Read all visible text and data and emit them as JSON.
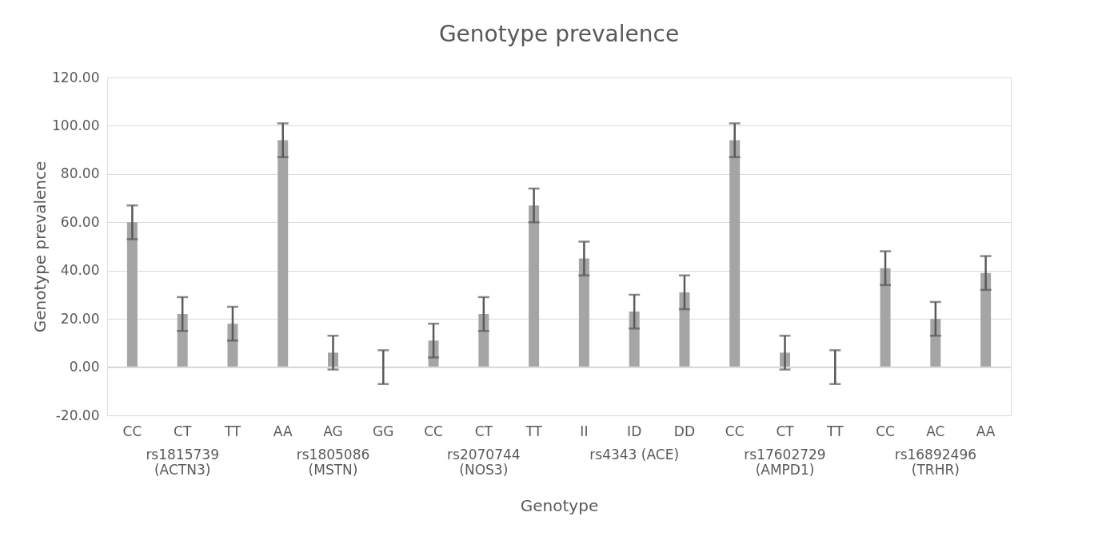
{
  "chart_data": {
    "type": "bar",
    "title": "Genotype prevalence",
    "xlabel": "Genotype",
    "ylabel": "Genotype prevalence",
    "categories": [
      "CC",
      "CT",
      "TT",
      "AA",
      "AG",
      "GG",
      "CC",
      "CT",
      "TT",
      "II",
      "ID",
      "DD",
      "CC",
      "CT",
      "TT",
      "CC",
      "AC",
      "AA"
    ],
    "values": [
      60,
      22,
      18,
      94,
      6,
      0,
      11,
      22,
      67,
      45,
      23,
      31,
      94,
      6,
      0,
      41,
      20,
      39
    ],
    "errors": [
      7,
      7,
      7,
      7,
      7,
      7,
      7,
      7,
      7,
      7,
      7,
      7,
      7,
      7,
      7,
      7,
      7,
      7
    ],
    "color": "#a5a5a5",
    "annotations": [
      "rs1815739\n(ACTN3)",
      "rs1805086\n(MSTN)",
      "rs2070744\n(NOS3)",
      "rs4343 (ACE)",
      "rs17602729\n(AMPD1)",
      "rs16892496\n(TRHR)"
    ],
    "ylim": [
      -20,
      120
    ],
    "yticks": [
      {
        "value": -20,
        "label": "-20.00"
      },
      {
        "value": 0,
        "label": "0.00"
      },
      {
        "value": 20,
        "label": "20.00"
      },
      {
        "value": 40,
        "label": "40.00"
      },
      {
        "value": 60,
        "label": "60.00"
      },
      {
        "value": 80,
        "label": "80.00"
      },
      {
        "value": 100,
        "label": "100.00"
      },
      {
        "value": 120,
        "label": "120.00"
      }
    ],
    "grid": "y"
  }
}
